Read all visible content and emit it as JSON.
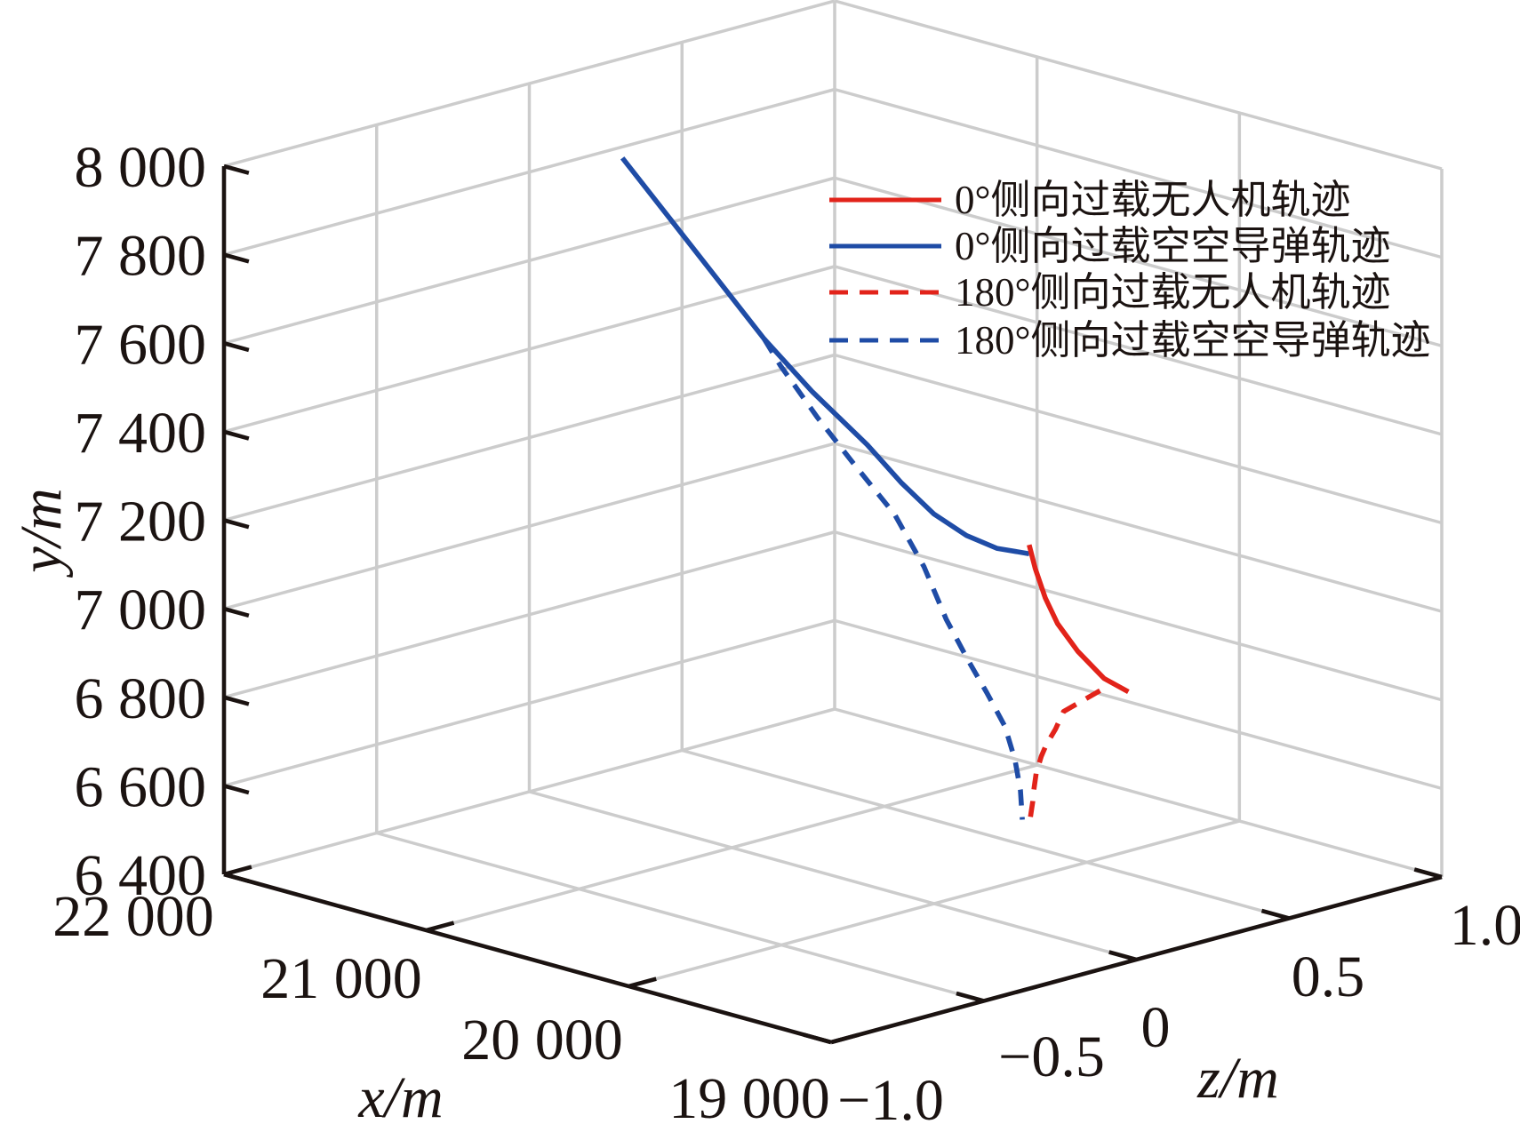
{
  "figure": {
    "type": "3d-line-chart",
    "background": "#ffffff",
    "grid_color": "#cccccc",
    "axis_color": "#1b1311"
  },
  "axes": {
    "x": {
      "title": "x/m",
      "tick_labels": [
        "22 000",
        "21 000",
        "20 000",
        "19 000"
      ],
      "tick_values": [
        22000,
        21000,
        20000,
        19000
      ],
      "range": [
        19000,
        22000
      ]
    },
    "z": {
      "title": "z/m",
      "tick_labels": [
        "−1.0",
        "−0.5",
        "0",
        "0.5",
        "1.0"
      ],
      "tick_values": [
        -1.0,
        -0.5,
        0,
        0.5,
        1.0
      ],
      "range": [
        -1.0,
        1.0
      ]
    },
    "y": {
      "title": "y/m",
      "tick_labels": [
        "8 000",
        "7 800",
        "7 600",
        "7 400",
        "7 200",
        "7 000",
        "6 800",
        "6 600",
        "6 400"
      ],
      "tick_values": [
        8000,
        7800,
        7600,
        7400,
        7200,
        7000,
        6800,
        6600,
        6400
      ],
      "range": [
        6400,
        8000
      ]
    }
  },
  "legend": {
    "items": [
      {
        "label": "0°侧向过载无人机轨迹",
        "color": "#e2231a",
        "dash": false
      },
      {
        "label": "0°侧向过载空空导弹轨迹",
        "color": "#1f4ca6",
        "dash": false
      },
      {
        "label": "180°侧向过载无人机轨迹",
        "color": "#e2231a",
        "dash": true
      },
      {
        "label": "180°侧向过载空空导弹轨迹",
        "color": "#1f4ca6",
        "dash": true
      }
    ]
  },
  "chart_data": {
    "type": "line",
    "projection": "3d",
    "grid": true,
    "xlabel": "x/m",
    "ylabel": "y/m",
    "zlabel": "z/m",
    "xlim": [
      19000,
      22000
    ],
    "ylim": [
      6400,
      8000
    ],
    "zlim": [
      -1.0,
      1.0
    ],
    "legend_position": "upper-right",
    "series": [
      {
        "name": "0°侧向过载无人机轨迹",
        "color": "#e2231a",
        "style": "solid",
        "z_m": 0,
        "points_xy": [
          [
            19530,
            7270
          ],
          [
            19500,
            7220
          ],
          [
            19450,
            7160
          ],
          [
            19390,
            7110
          ],
          [
            19290,
            7060
          ],
          [
            19160,
            7015
          ],
          [
            19040,
            7000
          ]
        ]
      },
      {
        "name": "0°侧向过载空空导弹轨迹",
        "color": "#1f4ca6",
        "style": "solid",
        "z_m": 0,
        "points_xy": [
          [
            21540,
            7890
          ],
          [
            21190,
            7730
          ],
          [
            20840,
            7570
          ],
          [
            20600,
            7480
          ],
          [
            20330,
            7395
          ],
          [
            20160,
            7330
          ],
          [
            20000,
            7280
          ],
          [
            19840,
            7252
          ],
          [
            19690,
            7242
          ],
          [
            19530,
            7250
          ]
        ]
      },
      {
        "name": "180°侧向过载无人机轨迹",
        "color": "#e2231a",
        "style": "dashed",
        "z_m": 0,
        "points_xy": [
          [
            19180,
            6985
          ],
          [
            19360,
            6915
          ],
          [
            19400,
            6870
          ],
          [
            19445,
            6830
          ],
          [
            19470,
            6800
          ],
          [
            19495,
            6760
          ],
          [
            19507,
            6720
          ],
          [
            19512,
            6693
          ],
          [
            19529,
            6640
          ]
        ]
      },
      {
        "name": "180°侧向过载空空导弹轨迹",
        "color": "#1f4ca6",
        "style": "dashed",
        "z_m": 0,
        "points_xy": [
          [
            20840,
            7570
          ],
          [
            20760,
            7520
          ],
          [
            20575,
            7425
          ],
          [
            20400,
            7345
          ],
          [
            20195,
            7255
          ],
          [
            20050,
            7155
          ],
          [
            19940,
            7050
          ],
          [
            19830,
            6970
          ],
          [
            19740,
            6910
          ],
          [
            19650,
            6845
          ],
          [
            19600,
            6775
          ],
          [
            19573,
            6710
          ],
          [
            19564,
            6645
          ]
        ]
      }
    ]
  }
}
